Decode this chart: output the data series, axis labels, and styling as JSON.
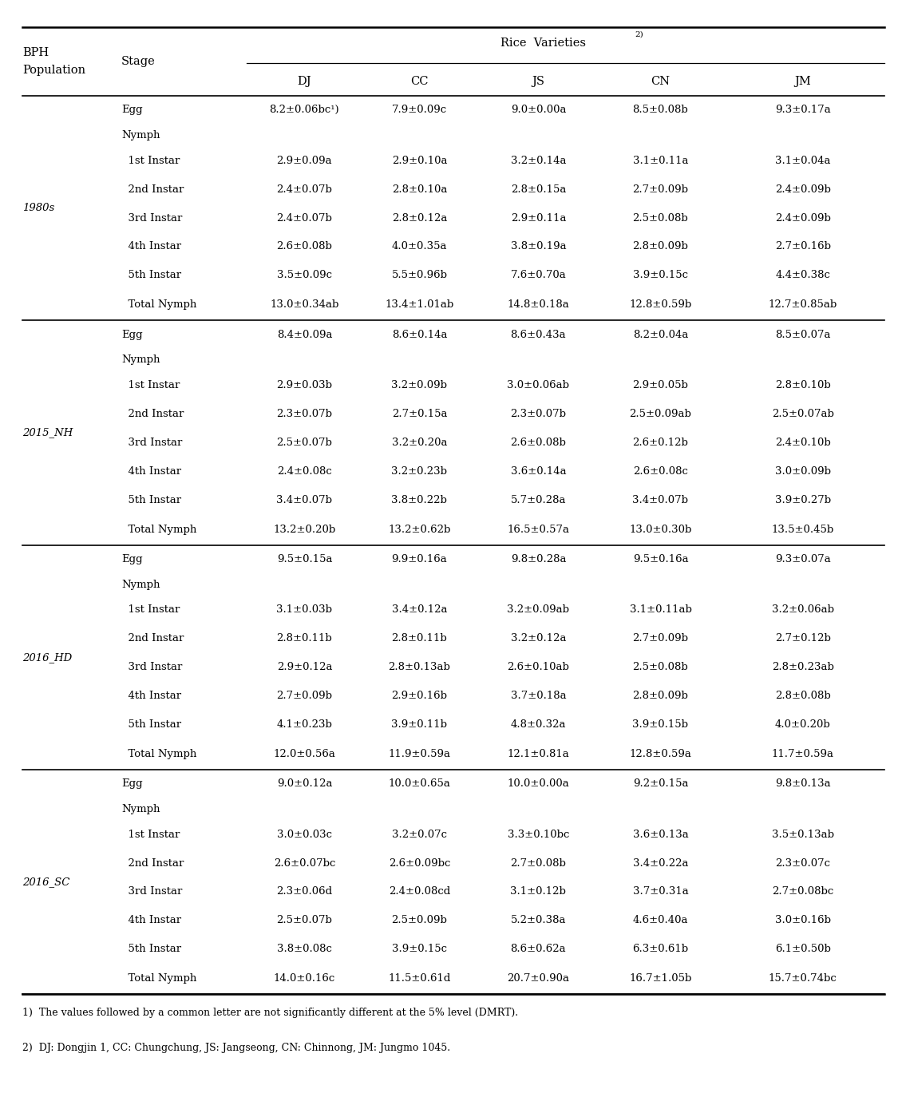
{
  "col_headers": [
    "DJ",
    "CC",
    "JS",
    "CN",
    "JM"
  ],
  "populations": [
    "1980s",
    "2015_NH",
    "2016_HD",
    "2016_SC"
  ],
  "data": {
    "1980s": {
      "Egg": [
        "8.2±0.06bc¹)",
        "7.9±0.09c",
        "9.0±0.00a",
        "8.5±0.08b",
        "9.3±0.17a"
      ],
      "Nymph": [
        "",
        "",
        "",
        "",
        ""
      ],
      "1st Instar": [
        "2.9±0.09a",
        "2.9±0.10a",
        "3.2±0.14a",
        "3.1±0.11a",
        "3.1±0.04a"
      ],
      "2nd Instar": [
        "2.4±0.07b",
        "2.8±0.10a",
        "2.8±0.15a",
        "2.7±0.09b",
        "2.4±0.09b"
      ],
      "3rd Instar": [
        "2.4±0.07b",
        "2.8±0.12a",
        "2.9±0.11a",
        "2.5±0.08b",
        "2.4±0.09b"
      ],
      "4th Instar": [
        "2.6±0.08b",
        "4.0±0.35a",
        "3.8±0.19a",
        "2.8±0.09b",
        "2.7±0.16b"
      ],
      "5th Instar": [
        "3.5±0.09c",
        "5.5±0.96b",
        "7.6±0.70a",
        "3.9±0.15c",
        "4.4±0.38c"
      ],
      "Total Nymph": [
        "13.0±0.34ab",
        "13.4±1.01ab",
        "14.8±0.18a",
        "12.8±0.59b",
        "12.7±0.85ab"
      ]
    },
    "2015_NH": {
      "Egg": [
        "8.4±0.09a",
        "8.6±0.14a",
        "8.6±0.43a",
        "8.2±0.04a",
        "8.5±0.07a"
      ],
      "Nymph": [
        "",
        "",
        "",
        "",
        ""
      ],
      "1st Instar": [
        "2.9±0.03b",
        "3.2±0.09b",
        "3.0±0.06ab",
        "2.9±0.05b",
        "2.8±0.10b"
      ],
      "2nd Instar": [
        "2.3±0.07b",
        "2.7±0.15a",
        "2.3±0.07b",
        "2.5±0.09ab",
        "2.5±0.07ab"
      ],
      "3rd Instar": [
        "2.5±0.07b",
        "3.2±0.20a",
        "2.6±0.08b",
        "2.6±0.12b",
        "2.4±0.10b"
      ],
      "4th Instar": [
        "2.4±0.08c",
        "3.2±0.23b",
        "3.6±0.14a",
        "2.6±0.08c",
        "3.0±0.09b"
      ],
      "5th Instar": [
        "3.4±0.07b",
        "3.8±0.22b",
        "5.7±0.28a",
        "3.4±0.07b",
        "3.9±0.27b"
      ],
      "Total Nymph": [
        "13.2±0.20b",
        "13.2±0.62b",
        "16.5±0.57a",
        "13.0±0.30b",
        "13.5±0.45b"
      ]
    },
    "2016_HD": {
      "Egg": [
        "9.5±0.15a",
        "9.9±0.16a",
        "9.8±0.28a",
        "9.5±0.16a",
        "9.3±0.07a"
      ],
      "Nymph": [
        "",
        "",
        "",
        "",
        ""
      ],
      "1st Instar": [
        "3.1±0.03b",
        "3.4±0.12a",
        "3.2±0.09ab",
        "3.1±0.11ab",
        "3.2±0.06ab"
      ],
      "2nd Instar": [
        "2.8±0.11b",
        "2.8±0.11b",
        "3.2±0.12a",
        "2.7±0.09b",
        "2.7±0.12b"
      ],
      "3rd Instar": [
        "2.9±0.12a",
        "2.8±0.13ab",
        "2.6±0.10ab",
        "2.5±0.08b",
        "2.8±0.23ab"
      ],
      "4th Instar": [
        "2.7±0.09b",
        "2.9±0.16b",
        "3.7±0.18a",
        "2.8±0.09b",
        "2.8±0.08b"
      ],
      "5th Instar": [
        "4.1±0.23b",
        "3.9±0.11b",
        "4.8±0.32a",
        "3.9±0.15b",
        "4.0±0.20b"
      ],
      "Total Nymph": [
        "12.0±0.56a",
        "11.9±0.59a",
        "12.1±0.81a",
        "12.8±0.59a",
        "11.7±0.59a"
      ]
    },
    "2016_SC": {
      "Egg": [
        "9.0±0.12a",
        "10.0±0.65a",
        "10.0±0.00a",
        "9.2±0.15a",
        "9.8±0.13a"
      ],
      "Nymph": [
        "",
        "",
        "",
        "",
        ""
      ],
      "1st Instar": [
        "3.0±0.03c",
        "3.2±0.07c",
        "3.3±0.10bc",
        "3.6±0.13a",
        "3.5±0.13ab"
      ],
      "2nd Instar": [
        "2.6±0.07bc",
        "2.6±0.09bc",
        "2.7±0.08b",
        "3.4±0.22a",
        "2.3±0.07c"
      ],
      "3rd Instar": [
        "2.3±0.06d",
        "2.4±0.08cd",
        "3.1±0.12b",
        "3.7±0.31a",
        "2.7±0.08bc"
      ],
      "4th Instar": [
        "2.5±0.07b",
        "2.5±0.09b",
        "5.2±0.38a",
        "4.6±0.40a",
        "3.0±0.16b"
      ],
      "5th Instar": [
        "3.8±0.08c",
        "3.9±0.15c",
        "8.6±0.62a",
        "6.3±0.61b",
        "6.1±0.50b"
      ],
      "Total Nymph": [
        "14.0±0.16c",
        "11.5±0.61d",
        "20.7±0.90a",
        "16.7±1.05b",
        "15.7±0.74bc"
      ]
    }
  },
  "footnote1": "1)  The values followed by a common letter are not significantly different at the 5% level (DMRT).",
  "footnote2": "2)  DJ: Dongjin 1, CC: Chungchung, JS: Jangseong, CN: Chinnong, JM: Jungmo 1045."
}
